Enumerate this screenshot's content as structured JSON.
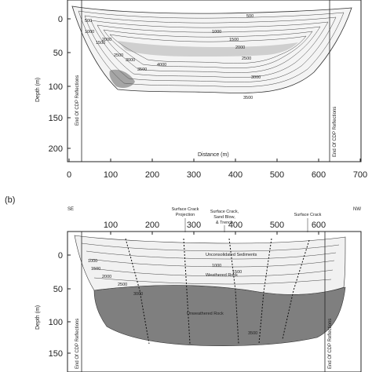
{
  "panel_a": {
    "end_cdp_left": "End Of CDP Reflections",
    "end_cdp_right": "End Of CDP Reflections",
    "xlabel": "Distance (m)",
    "ylabel": "Depth (m)",
    "x_ticks": [
      "0",
      "100",
      "200",
      "300",
      "400",
      "500",
      "600",
      "700"
    ],
    "y_ticks": [
      "0",
      "50",
      "100",
      "150",
      "200"
    ],
    "contour_labels": [
      "500",
      "1000",
      "1500",
      "2000",
      "2500",
      "3000",
      "3500",
      "4000",
      "1000",
      "1500",
      "2000",
      "2500",
      "3000",
      "3500",
      "500"
    ]
  },
  "panel_b": {
    "label": "(b)",
    "dir_left": "SE",
    "dir_right": "NW",
    "top_ticks": [
      "100",
      "200",
      "300",
      "400",
      "500",
      "600"
    ],
    "annotations": {
      "crack_projection": [
        "Surface Crack",
        "Projection"
      ],
      "crack_sandblow": [
        "Surface Crack,",
        "Sand Blow,",
        "& Trench"
      ],
      "crack_right": "Surface Crack"
    },
    "layers": {
      "unconsolidated": "Unconsolidated Sediments",
      "weathered": "Weathered Rock",
      "unweathered": "Unweathered Rock"
    },
    "contour_labels": [
      "1000",
      "1500",
      "2000",
      "2500",
      "3000",
      "3500",
      "1000",
      "1500"
    ],
    "end_cdp_left": "End Of CDP Reflections",
    "end_cdp_right": "End Of CDP Reflections",
    "ylabel": "Depth (m)",
    "y_ticks": [
      "0",
      "50",
      "100",
      "150"
    ]
  }
}
